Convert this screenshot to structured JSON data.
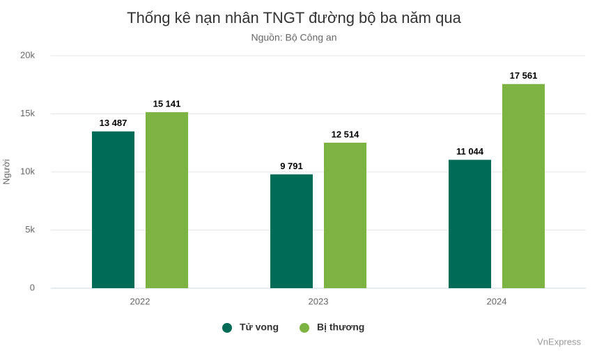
{
  "chart_data": {
    "type": "bar",
    "title": "Thống kê nạn nhân TNGT đường bộ ba năm qua",
    "subtitle": "Nguồn: Bộ Công an",
    "y_label": "Người",
    "categories": [
      "2022",
      "2023",
      "2024"
    ],
    "series": [
      {
        "name": "Tử vong",
        "color": "#006b57",
        "values": [
          13487,
          9791,
          11044
        ],
        "value_labels": [
          "13 487",
          "9 791",
          "11 044"
        ]
      },
      {
        "name": "Bị thương",
        "color": "#7cb342",
        "values": [
          15141,
          12514,
          17561
        ],
        "value_labels": [
          "15 141",
          "12 514",
          "17 561"
        ]
      }
    ],
    "ylim": [
      0,
      20000
    ],
    "yticks": [
      0,
      {
        "value": 5000,
        "label": "5k"
      },
      {
        "value": 10000,
        "label": "10k"
      },
      {
        "value": 15000,
        "label": "15k"
      },
      {
        "value": 20000,
        "label": "20k"
      }
    ],
    "grid": true,
    "legend": "bottom",
    "credits": "VnExpress"
  }
}
